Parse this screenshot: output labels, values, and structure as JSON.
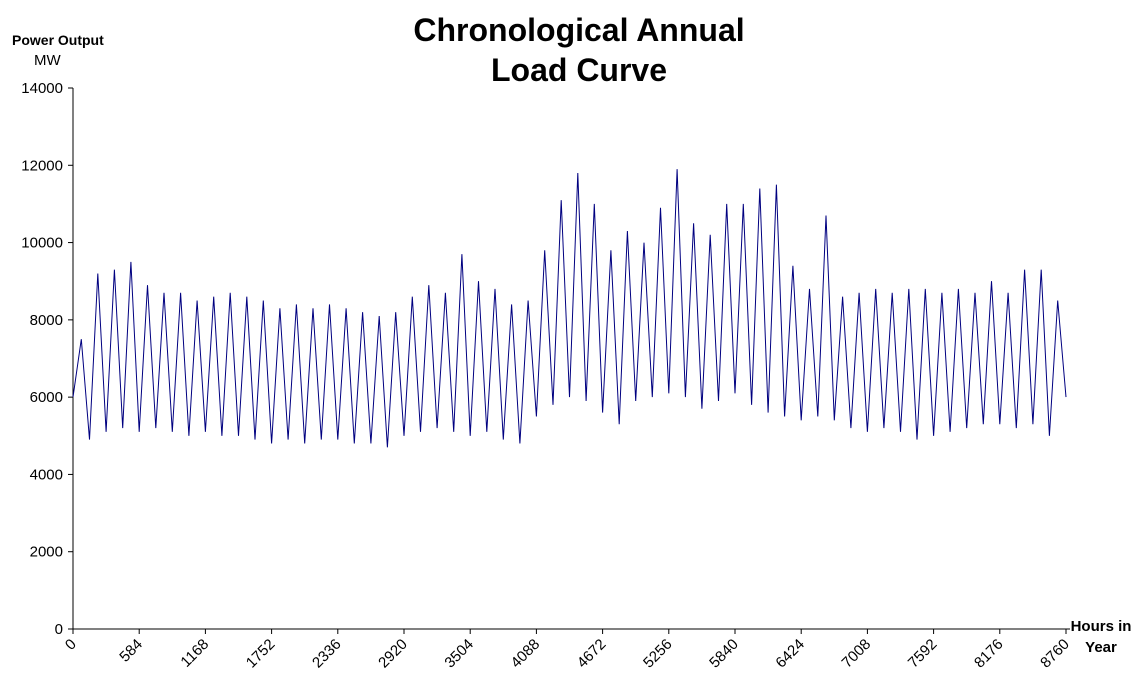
{
  "chart_data": {
    "type": "line",
    "title": "Chronological Annual Load Curve",
    "y_label": "Power Output",
    "y_unit": "MW",
    "x_label": "Hours in Year",
    "x": [
      0,
      73,
      146,
      219,
      292,
      365,
      438,
      511,
      584,
      657,
      730,
      803,
      876,
      949,
      1022,
      1095,
      1168,
      1241,
      1314,
      1387,
      1460,
      1533,
      1606,
      1679,
      1752,
      1825,
      1898,
      1971,
      2044,
      2117,
      2190,
      2263,
      2336,
      2409,
      2482,
      2555,
      2628,
      2701,
      2774,
      2847,
      2920,
      2993,
      3066,
      3139,
      3212,
      3285,
      3358,
      3431,
      3504,
      3577,
      3650,
      3723,
      3796,
      3869,
      3942,
      4015,
      4088,
      4161,
      4234,
      4307,
      4380,
      4453,
      4526,
      4599,
      4672,
      4745,
      4818,
      4891,
      4964,
      5037,
      5110,
      5183,
      5256,
      5329,
      5402,
      5475,
      5548,
      5621,
      5694,
      5767,
      5840,
      5913,
      5986,
      6059,
      6132,
      6205,
      6278,
      6351,
      6424,
      6497,
      6570,
      6643,
      6716,
      6789,
      6862,
      6935,
      7008,
      7081,
      7154,
      7227,
      7300,
      7373,
      7446,
      7519,
      7592,
      7665,
      7738,
      7811,
      7884,
      7957,
      8030,
      8103,
      8176,
      8249,
      8322,
      8395,
      8468,
      8541,
      8614,
      8687,
      8760
    ],
    "series": [
      {
        "name": "Load",
        "color": "#000080",
        "values": [
          6000,
          7500,
          4900,
          9200,
          5100,
          9300,
          5200,
          9500,
          5100,
          8900,
          5200,
          8700,
          5100,
          8700,
          5000,
          8500,
          5100,
          8600,
          5000,
          8700,
          5000,
          8600,
          4900,
          8500,
          4800,
          8300,
          4900,
          8400,
          4800,
          8300,
          4900,
          8400,
          4900,
          8300,
          4800,
          8200,
          4800,
          8100,
          4700,
          8200,
          5000,
          8600,
          5100,
          8900,
          5200,
          8700,
          5100,
          9700,
          5000,
          9000,
          5100,
          8800,
          4900,
          8400,
          4800,
          8500,
          5500,
          9800,
          5800,
          11100,
          6000,
          11800,
          5900,
          11000,
          5600,
          9800,
          5300,
          10300,
          5900,
          10000,
          6000,
          10900,
          6100,
          11900,
          6000,
          10500,
          5700,
          10200,
          5900,
          11000,
          6100,
          11000,
          5800,
          11400,
          5600,
          11500,
          5500,
          9400,
          5400,
          8800,
          5500,
          10700,
          5400,
          8600,
          5200,
          8700,
          5100,
          8800,
          5200,
          8700,
          5100,
          8800,
          4900,
          8800,
          5000,
          8700,
          5100,
          8800,
          5200,
          8700,
          5300,
          9000,
          5300,
          8700,
          5200,
          9300,
          5300,
          9300,
          5000,
          8500,
          6000
        ]
      }
    ],
    "xlim": [
      0,
      8760
    ],
    "xticks": [
      0,
      584,
      1168,
      1752,
      2336,
      2920,
      3504,
      4088,
      4672,
      5256,
      5840,
      6424,
      7008,
      7592,
      8176,
      8760
    ],
    "ylim": [
      0,
      14000
    ],
    "yticks": [
      0,
      2000,
      4000,
      6000,
      8000,
      10000,
      12000,
      14000
    ],
    "grid": false
  }
}
